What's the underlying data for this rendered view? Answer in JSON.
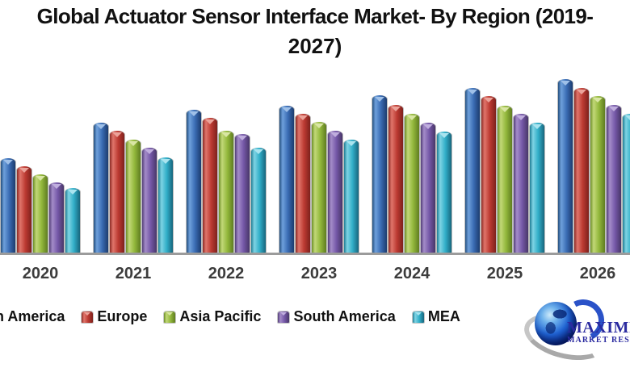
{
  "title": {
    "line1": "Global Actuator Sensor Interface Market- By Region (2019-",
    "line2": "2027)",
    "full": "Global Actuator Sensor Interface Market- By Region (2019-2027)"
  },
  "chart_data": {
    "type": "bar",
    "title": "Global Actuator Sensor Interface Market- By Region (2019-2027)",
    "xlabel": "",
    "ylabel": "",
    "value_axis_visible": false,
    "grid": false,
    "legend_position": "bottom",
    "units": "relative height (no value axis shown in image)",
    "ylim": [
      0,
      230
    ],
    "categories": [
      "2020",
      "2021",
      "2022",
      "2023",
      "2024",
      "2025",
      "2026"
    ],
    "series": [
      {
        "name": "North America",
        "color": "#3a6cb4",
        "values": [
          118,
          162,
          178,
          183,
          196,
          205,
          216
        ]
      },
      {
        "name": "Europe",
        "color": "#bc3a32",
        "values": [
          108,
          152,
          168,
          173,
          184,
          195,
          205
        ]
      },
      {
        "name": "Asia Pacific",
        "color": "#93b83c",
        "values": [
          98,
          141,
          152,
          163,
          173,
          183,
          195
        ]
      },
      {
        "name": "South America",
        "color": "#7558a8",
        "values": [
          88,
          131,
          148,
          152,
          162,
          173,
          184
        ]
      },
      {
        "name": "MEA",
        "color": "#31aec8",
        "values": [
          81,
          119,
          131,
          141,
          151,
          162,
          173
        ]
      }
    ],
    "notes": "Chart is cropped: 2019 and 2027 groups fall outside the visible image; 2026 MEA bar and legend 'North America' label are partially clipped at the edges."
  },
  "watermark": {
    "brand_line1": "MAXIMIZE",
    "brand_line2": "MARKET RESEARCH"
  }
}
